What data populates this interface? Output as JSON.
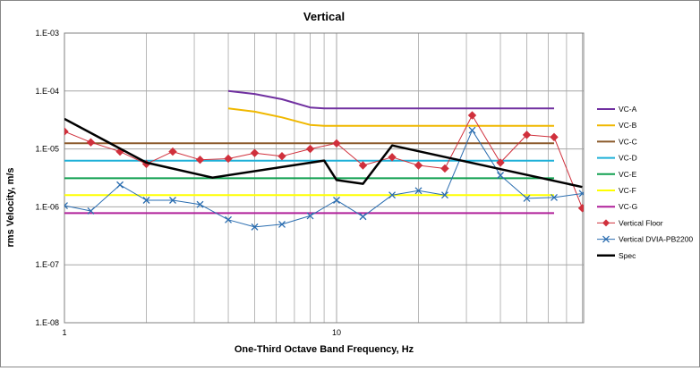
{
  "chart_data": {
    "type": "line",
    "title": "Vertical",
    "xlabel": "One-Third Octave Band Frequency, Hz",
    "ylabel": "rms Velocity, m/s",
    "x_scale": "log",
    "y_scale": "log",
    "xlim": [
      1,
      63
    ],
    "ylim": [
      1e-08,
      0.001
    ],
    "x_tick_labels": [
      {
        "value": 1,
        "label": "1"
      },
      {
        "value": 10,
        "label": "10"
      }
    ],
    "y_tick_labels": [
      {
        "value": 0.001,
        "label": "1.E-03"
      },
      {
        "value": 0.0001,
        "label": "1.E-04"
      },
      {
        "value": 1e-05,
        "label": "1.E-05"
      },
      {
        "value": 1e-06,
        "label": "1.E-06"
      },
      {
        "value": 1e-07,
        "label": "1.E-07"
      },
      {
        "value": 1e-08,
        "label": "1.E-08"
      }
    ],
    "grid": true,
    "legend_position": "right",
    "series": [
      {
        "name": "VC-A",
        "color": "#7030a0",
        "width": 2,
        "marker": "none",
        "points": [
          [
            4,
            0.0001
          ],
          [
            5,
            8.9e-05
          ],
          [
            6.3,
            7.2e-05
          ],
          [
            8,
            5.2e-05
          ],
          [
            9,
            5e-05
          ],
          [
            63,
            5e-05
          ]
        ]
      },
      {
        "name": "VC-B",
        "color": "#f0b800",
        "width": 2,
        "marker": "none",
        "points": [
          [
            4,
            5e-05
          ],
          [
            5,
            4.4e-05
          ],
          [
            6.3,
            3.5e-05
          ],
          [
            8,
            2.6e-05
          ],
          [
            9,
            2.5e-05
          ],
          [
            63,
            2.5e-05
          ]
        ]
      },
      {
        "name": "VC-C",
        "color": "#8b5a2b",
        "width": 2,
        "marker": "none",
        "points": [
          [
            1,
            1.25e-05
          ],
          [
            63,
            1.25e-05
          ]
        ]
      },
      {
        "name": "VC-D",
        "color": "#1fb0d8",
        "width": 2,
        "marker": "none",
        "points": [
          [
            1,
            6.25e-06
          ],
          [
            63,
            6.25e-06
          ]
        ]
      },
      {
        "name": "VC-E",
        "color": "#12a050",
        "width": 2,
        "marker": "none",
        "points": [
          [
            1,
            3.12e-06
          ],
          [
            63,
            3.12e-06
          ]
        ]
      },
      {
        "name": "VC-F",
        "color": "#ffff00",
        "width": 2,
        "marker": "none",
        "points": [
          [
            1,
            1.6e-06
          ],
          [
            63,
            1.6e-06
          ]
        ]
      },
      {
        "name": "VC-G",
        "color": "#b0209a",
        "width": 2,
        "marker": "none",
        "points": [
          [
            1,
            7.8e-07
          ],
          [
            63,
            7.8e-07
          ]
        ]
      },
      {
        "name": "Vertical Floor",
        "color": "#d0303c",
        "width": 1,
        "marker": "diamond",
        "points": [
          [
            1,
            2e-05
          ],
          [
            1.25,
            1.3e-05
          ],
          [
            1.6,
            9e-06
          ],
          [
            2,
            5.5e-06
          ],
          [
            2.5,
            9e-06
          ],
          [
            3.15,
            6.5e-06
          ],
          [
            4,
            6.8e-06
          ],
          [
            5,
            8.5e-06
          ],
          [
            6.3,
            7.5e-06
          ],
          [
            8,
            1e-05
          ],
          [
            10,
            1.25e-05
          ],
          [
            12.5,
            5.2e-06
          ],
          [
            16,
            7.2e-06
          ],
          [
            20,
            5.2e-06
          ],
          [
            25,
            4.6e-06
          ],
          [
            31.5,
            3.8e-05
          ],
          [
            40,
            5.8e-06
          ],
          [
            50,
            1.75e-05
          ],
          [
            63,
            1.6e-05
          ],
          [
            80,
            9.5e-07
          ]
        ]
      },
      {
        "name": "Vertical DVIA-PB2200",
        "color": "#2a6db0",
        "width": 1,
        "marker": "x",
        "points": [
          [
            1,
            1.05e-06
          ],
          [
            1.25,
            8.5e-07
          ],
          [
            1.6,
            2.4e-06
          ],
          [
            2,
            1.3e-06
          ],
          [
            2.5,
            1.3e-06
          ],
          [
            3.15,
            1.1e-06
          ],
          [
            4,
            6e-07
          ],
          [
            5,
            4.5e-07
          ],
          [
            6.3,
            5e-07
          ],
          [
            8,
            7e-07
          ],
          [
            10,
            1.3e-06
          ],
          [
            12.5,
            6.8e-07
          ],
          [
            16,
            1.6e-06
          ],
          [
            20,
            1.9e-06
          ],
          [
            25,
            1.6e-06
          ],
          [
            31.5,
            2.1e-05
          ],
          [
            40,
            3.5e-06
          ],
          [
            50,
            1.4e-06
          ],
          [
            63,
            1.45e-06
          ],
          [
            80,
            1.7e-06
          ]
        ]
      },
      {
        "name": "Spec",
        "color": "#000000",
        "width": 2.5,
        "marker": "none",
        "points": [
          [
            1,
            3.3e-05
          ],
          [
            2,
            5.8e-06
          ],
          [
            3.5,
            3.2e-06
          ],
          [
            9,
            6.3e-06
          ],
          [
            10,
            2.9e-06
          ],
          [
            12.5,
            2.5e-06
          ],
          [
            16,
            1.15e-05
          ],
          [
            80,
            2.2e-06
          ]
        ]
      }
    ]
  }
}
